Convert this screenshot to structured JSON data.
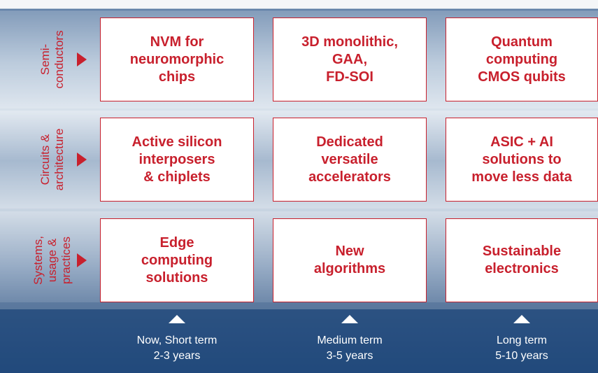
{
  "rows": [
    {
      "label": [
        "Semi-",
        "conductors"
      ],
      "cells": [
        [
          "NVM for",
          "neuromorphic",
          "chips"
        ],
        [
          "3D monolithic,",
          "GAA,",
          "FD-SOI"
        ],
        [
          "Quantum",
          "computing",
          "CMOS qubits"
        ]
      ]
    },
    {
      "label": [
        "Circuits &",
        "architecture"
      ],
      "cells": [
        [
          "Active silicon",
          "interposers",
          "& chiplets"
        ],
        [
          "Dedicated",
          "versatile",
          "accelerators"
        ],
        [
          "ASIC + AI",
          "solutions to",
          "move less data"
        ]
      ]
    },
    {
      "label": [
        "Systems,",
        "usage &",
        "practices"
      ],
      "cells": [
        [
          "Edge",
          "computing",
          "solutions"
        ],
        [
          "New",
          "algorithms"
        ],
        [
          "Sustainable",
          "electronics"
        ]
      ]
    }
  ],
  "columns": [
    {
      "term": "Now, Short term",
      "years": "2-3 years"
    },
    {
      "term": "Medium term",
      "years": "3-5 years"
    },
    {
      "term": "Long term",
      "years": "5-10 years"
    }
  ]
}
